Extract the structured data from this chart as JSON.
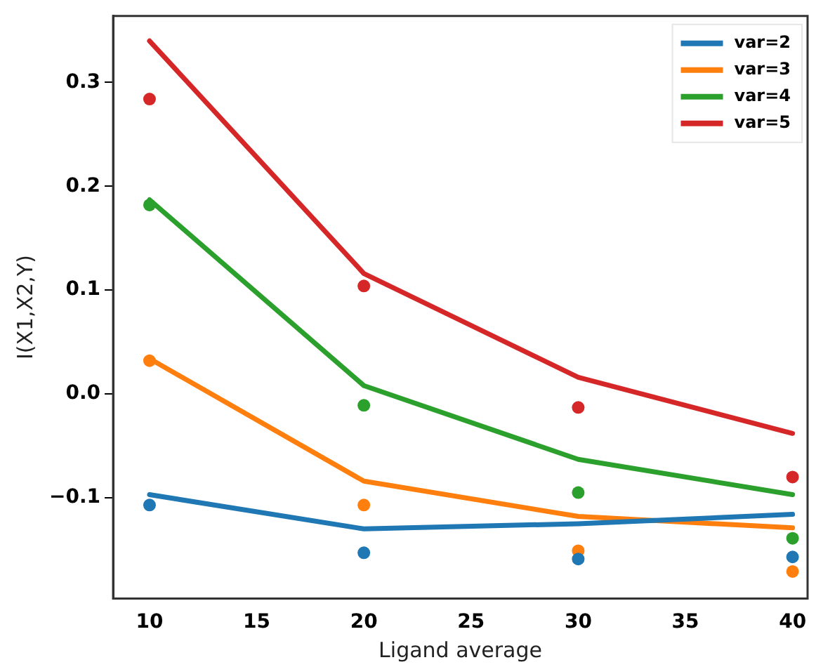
{
  "chart_data": {
    "type": "line",
    "xlabel": "Ligand average",
    "ylabel": "I(X1,X2,Y)",
    "x": [
      10,
      20,
      30,
      40
    ],
    "xlim": [
      8.3,
      40.7
    ],
    "xticks": [
      10,
      15,
      20,
      25,
      30,
      35,
      40
    ],
    "ylim": [
      -0.197,
      0.364
    ],
    "yticks": [
      {
        "value": -0.1,
        "label": "−0.1"
      },
      {
        "value": 0,
        "label": "0.0"
      },
      0.1,
      0.2,
      0.3
    ],
    "grid": false,
    "legend": "top right",
    "series": [
      {
        "name": "var=2",
        "color": "#1f77b4",
        "values": [
          -0.097,
          -0.13,
          -0.125,
          -0.116
        ],
        "marker": "none"
      },
      {
        "name": "var=3",
        "color": "#ff7f0e",
        "values": [
          0.034,
          -0.084,
          -0.118,
          -0.129
        ],
        "marker": "none"
      },
      {
        "name": "var=4",
        "color": "#2ca02c",
        "values": [
          0.187,
          0.008,
          -0.063,
          -0.097
        ],
        "marker": "none"
      },
      {
        "name": "var=5",
        "color": "#d62728",
        "values": [
          0.34,
          0.116,
          0.016,
          -0.038
        ],
        "marker": "none"
      },
      {
        "type": "scatter",
        "color": "#1f77b4",
        "values": [
          -0.107,
          -0.153,
          -0.159,
          -0.157
        ],
        "marker": "circle"
      },
      {
        "type": "scatter",
        "color": "#ff7f0e",
        "values": [
          0.032,
          -0.107,
          -0.151,
          -0.171
        ],
        "marker": "circle"
      },
      {
        "type": "scatter",
        "color": "#2ca02c",
        "values": [
          0.182,
          -0.011,
          -0.095,
          -0.139
        ],
        "marker": "circle"
      },
      {
        "type": "scatter",
        "color": "#d62728",
        "values": [
          0.284,
          0.104,
          -0.013,
          -0.08
        ],
        "marker": "circle"
      }
    ]
  }
}
